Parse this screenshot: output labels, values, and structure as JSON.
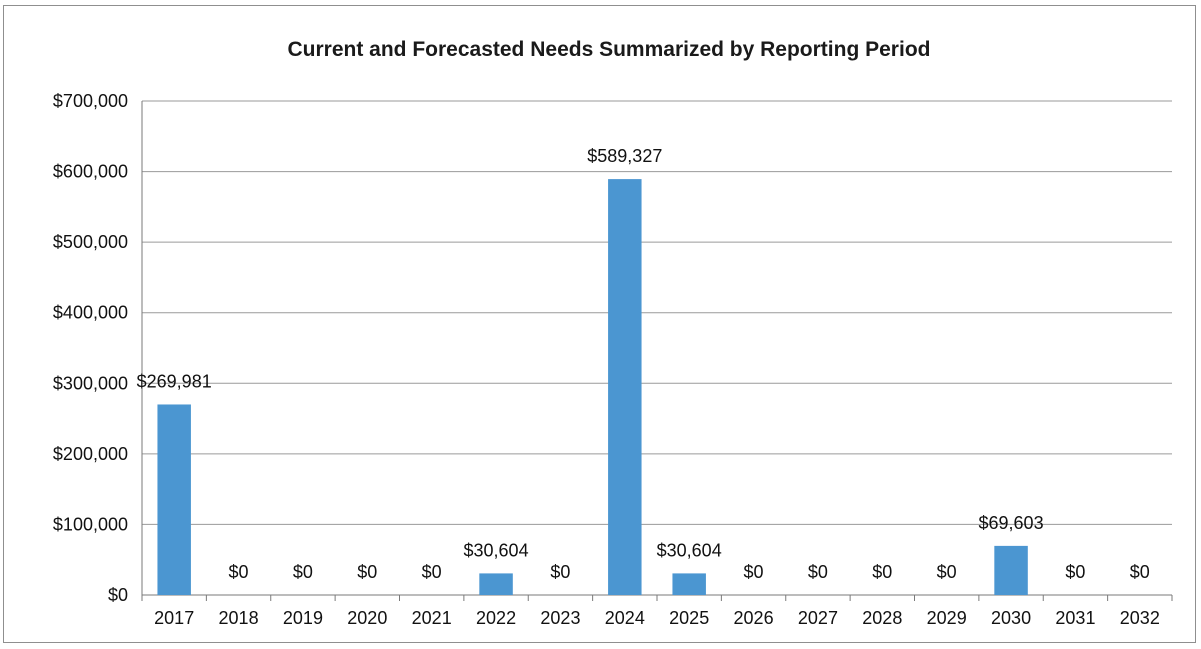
{
  "chart_data": {
    "type": "bar",
    "title": "Current and Forecasted Needs Summarized by Reporting Period",
    "xlabel": "",
    "ylabel": "",
    "categories": [
      "2017",
      "2018",
      "2019",
      "2020",
      "2021",
      "2022",
      "2023",
      "2024",
      "2025",
      "2026",
      "2027",
      "2028",
      "2029",
      "2030",
      "2031",
      "2032"
    ],
    "values": [
      269981,
      0,
      0,
      0,
      0,
      30604,
      0,
      589327,
      30604,
      0,
      0,
      0,
      0,
      69603,
      0,
      0
    ],
    "data_labels": [
      "$269,981",
      "$0",
      "$0",
      "$0",
      "$0",
      "$30,604",
      "$0",
      "$589,327",
      "$30,604",
      "$0",
      "$0",
      "$0",
      "$0",
      "$69,603",
      "$0",
      "$0"
    ],
    "ylim": [
      0,
      700000
    ],
    "yticks": [
      0,
      100000,
      200000,
      300000,
      400000,
      500000,
      600000,
      700000
    ],
    "ytick_labels": [
      "$0",
      "$100,000",
      "$200,000",
      "$300,000",
      "$400,000",
      "$500,000",
      "$600,000",
      "$700,000"
    ],
    "grid": true,
    "legend": "none",
    "bar_color": "#4b96d1"
  }
}
